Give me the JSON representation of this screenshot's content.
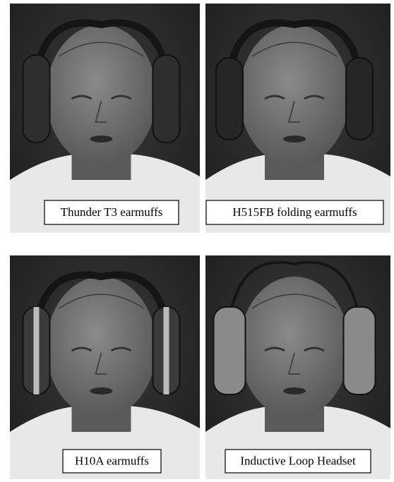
{
  "panels": [
    {
      "caption": "Thunder T3 earmuffs"
    },
    {
      "caption": "H515FB folding earmuffs"
    },
    {
      "caption": "H10A earmuffs"
    },
    {
      "caption": "Inductive Loop Headset"
    }
  ]
}
